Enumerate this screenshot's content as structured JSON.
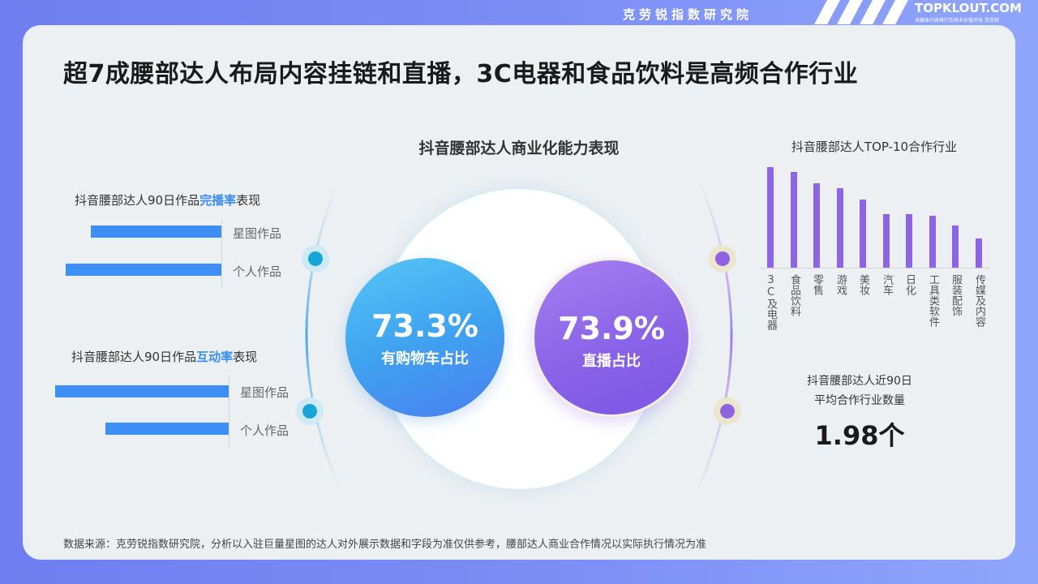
{
  "header": {
    "org_name": "克劳锐指数研究院",
    "logo_text": "TOPKLOUT.COM",
    "logo_sub": "自媒体内容排行及商业价值评估 克劳锐"
  },
  "title": "超7成腰部达人布局内容挂链和直播，3C电器和食品饮料是高频合作行业",
  "completion": {
    "title_pre": "抖音腰部达人90日作品",
    "title_hl": "完播率",
    "title_post": "表现",
    "bars": [
      {
        "label": "星图作品",
        "value": 0.84
      },
      {
        "label": "个人作品",
        "value": 1.0
      }
    ]
  },
  "interaction": {
    "title_pre": "抖音腰部达人90日作品",
    "title_hl": "互动率",
    "title_post": "表现",
    "bars": [
      {
        "label": "星图作品",
        "value": 1.0
      },
      {
        "label": "个人作品",
        "value": 0.71
      }
    ]
  },
  "commercial": {
    "title": "抖音腰部达人商业化能力表现",
    "left": {
      "pct": "73.3%",
      "label": "有购物车占比"
    },
    "right": {
      "pct": "73.9%",
      "label": "直播占比"
    }
  },
  "chart_data": {
    "type": "bar",
    "title": "抖音腰部达人TOP-10合作行业",
    "categories": [
      "3C及电器",
      "食品饮料",
      "零售",
      "游戏",
      "美妆",
      "汽车",
      "日化",
      "工具类软件",
      "服装配饰",
      "传媒及内容"
    ],
    "values": [
      100,
      95,
      84,
      79,
      68,
      53,
      53,
      52,
      42,
      29
    ],
    "ylim": [
      0,
      100
    ],
    "grid": false,
    "legend": "none"
  },
  "average": {
    "title_line1": "抖音腰部达人近90日",
    "title_line2": "平均合作行业数量",
    "value": "1.98个"
  },
  "footer": "数据来源：克劳锐指数研究院，分析以入驻巨量星图的达人对外展示数据和字段为准仅供参考，腰部达人商业合作情况以实际执行情况为准",
  "colors": {
    "bar_blue": "#3d8ef5",
    "bar_purple": "#8e64e6",
    "highlight": "#3d8cf0"
  }
}
